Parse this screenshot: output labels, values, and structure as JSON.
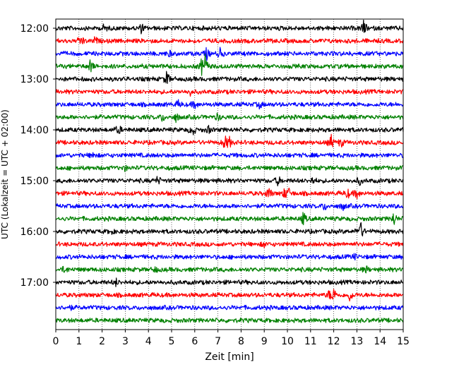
{
  "chart_data": {
    "type": "line",
    "title": "",
    "xlabel": "Zeit  [min]",
    "ylabel": "UTC (Lokalzeit = UTC + 02:00)",
    "xlim": [
      0,
      15
    ],
    "x_ticks": [
      "0",
      "1",
      "2",
      "3",
      "4",
      "5",
      "6",
      "7",
      "8",
      "9",
      "10",
      "11",
      "12",
      "13",
      "14",
      "15"
    ],
    "y_ticks": [
      "12:00",
      "13:00",
      "14:00",
      "15:00",
      "16:00",
      "17:00"
    ],
    "trace_interval_min": 15,
    "grid": "vertical dotted at each minute",
    "colors": [
      "#000000",
      "#ff0000",
      "#0000ff",
      "#008000"
    ],
    "series": [
      {
        "start": "12:00",
        "color": "#000000",
        "events": [
          [
            2.1,
            0.35
          ],
          [
            3.7,
            0.4
          ],
          [
            13.3,
            0.75
          ]
        ]
      },
      {
        "start": "12:15",
        "color": "#ff0000",
        "events": [
          [
            1.1,
            0.55
          ],
          [
            1.7,
            0.3
          ]
        ]
      },
      {
        "start": "12:30",
        "color": "#0000ff",
        "events": [
          [
            6.5,
            0.55
          ],
          [
            7.1,
            0.45
          ],
          [
            4.9,
            0.25
          ]
        ]
      },
      {
        "start": "12:45",
        "color": "#008000",
        "events": [
          [
            1.5,
            0.6
          ],
          [
            6.3,
            0.55
          ],
          [
            6.45,
            0.95
          ]
        ]
      },
      {
        "start": "13:00",
        "color": "#000000",
        "events": [
          [
            4.8,
            0.7
          ]
        ]
      },
      {
        "start": "13:15",
        "color": "#ff0000",
        "events": [
          [
            5.8,
            0.25
          ]
        ]
      },
      {
        "start": "13:30",
        "color": "#0000ff",
        "events": [
          [
            5.3,
            0.3
          ],
          [
            6.0,
            0.35
          ],
          [
            8.8,
            0.3
          ]
        ]
      },
      {
        "start": "13:45",
        "color": "#008000",
        "events": [
          [
            4.6,
            0.35
          ],
          [
            5.2,
            0.4
          ],
          [
            7.0,
            0.3
          ]
        ]
      },
      {
        "start": "14:00",
        "color": "#000000",
        "events": [
          [
            2.7,
            0.45
          ],
          [
            5.9,
            0.55
          ],
          [
            6.6,
            0.3
          ]
        ]
      },
      {
        "start": "14:15",
        "color": "#ff0000",
        "events": [
          [
            7.3,
            0.6
          ],
          [
            7.5,
            0.45
          ],
          [
            11.9,
            0.65
          ],
          [
            12.3,
            0.4
          ]
        ]
      },
      {
        "start": "14:30",
        "color": "#0000ff",
        "events": [
          [
            1.6,
            0.3
          ]
        ]
      },
      {
        "start": "14:45",
        "color": "#008000",
        "events": [
          [
            3.0,
            0.2
          ]
        ]
      },
      {
        "start": "15:00",
        "color": "#000000",
        "events": [
          [
            4.4,
            0.35
          ],
          [
            9.6,
            0.4
          ],
          [
            11.1,
            0.3
          ],
          [
            13.1,
            0.35
          ]
        ]
      },
      {
        "start": "15:15",
        "color": "#ff0000",
        "events": [
          [
            9.2,
            0.6
          ],
          [
            9.9,
            0.5
          ],
          [
            10.1,
            0.4
          ],
          [
            12.6,
            0.4
          ],
          [
            13.0,
            0.45
          ]
        ]
      },
      {
        "start": "15:30",
        "color": "#0000ff",
        "events": [
          [
            11.6,
            0.35
          ],
          [
            12.4,
            0.3
          ]
        ]
      },
      {
        "start": "15:45",
        "color": "#008000",
        "events": [
          [
            10.7,
            0.6
          ],
          [
            14.6,
            0.6
          ]
        ]
      },
      {
        "start": "16:00",
        "color": "#000000",
        "events": [
          [
            13.1,
            0.7
          ],
          [
            13.2,
            0.5
          ],
          [
            2.4,
            0.2
          ]
        ]
      },
      {
        "start": "16:15",
        "color": "#ff0000",
        "events": [
          [
            9.0,
            0.2
          ]
        ]
      },
      {
        "start": "16:30",
        "color": "#0000ff",
        "events": [
          [
            12.9,
            0.2
          ]
        ]
      },
      {
        "start": "16:45",
        "color": "#008000",
        "events": [
          [
            0.4,
            0.35
          ],
          [
            4.3,
            0.25
          ],
          [
            13.4,
            0.25
          ]
        ]
      },
      {
        "start": "17:00",
        "color": "#000000",
        "events": [
          [
            2.6,
            0.3
          ]
        ]
      },
      {
        "start": "17:15",
        "color": "#ff0000",
        "events": [
          [
            12.0,
            0.6
          ],
          [
            12.7,
            0.55
          ],
          [
            11.8,
            0.35
          ]
        ]
      },
      {
        "start": "17:30",
        "color": "#0000ff",
        "events": [
          [
            0.6,
            0.2
          ]
        ]
      },
      {
        "start": "17:45",
        "color": "#008000",
        "events": []
      }
    ]
  }
}
